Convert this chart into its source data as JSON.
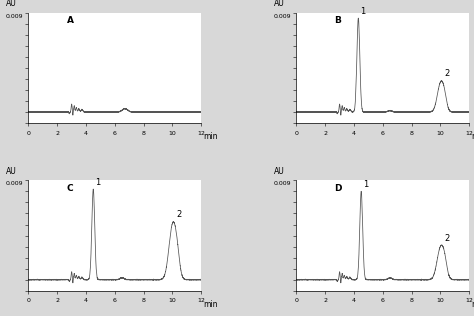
{
  "panels": [
    "A",
    "B",
    "C",
    "D"
  ],
  "xlim": [
    0,
    12
  ],
  "ylim": [
    -0.001,
    0.009
  ],
  "yticks": [
    -0.001,
    0.0,
    0.001,
    0.002,
    0.003,
    0.004,
    0.005,
    0.006,
    0.007,
    0.008,
    0.009
  ],
  "xticks": [
    0,
    2,
    4,
    6,
    8,
    10,
    12
  ],
  "xlabel": "min",
  "ylabel": "AU",
  "ymax_label": "0.009",
  "line_color": "#555555",
  "bg_color": "#ffffff",
  "fig_bg_color": "#d8d8d8",
  "panel_label_fontsize": 6.5,
  "axis_label_fontsize": 5.5,
  "tick_fontsize": 4.5,
  "peak_label_fontsize": 6,
  "peak1_A": null,
  "peak1_B": [
    4.3,
    0.0085
  ],
  "peak1_C": [
    4.5,
    0.0082
  ],
  "peak1_D": [
    4.5,
    0.008
  ],
  "peak2_B": [
    10.0,
    0.0029
  ],
  "peak2_C": [
    10.0,
    0.005
  ],
  "peak2_D": [
    10.0,
    0.003
  ]
}
